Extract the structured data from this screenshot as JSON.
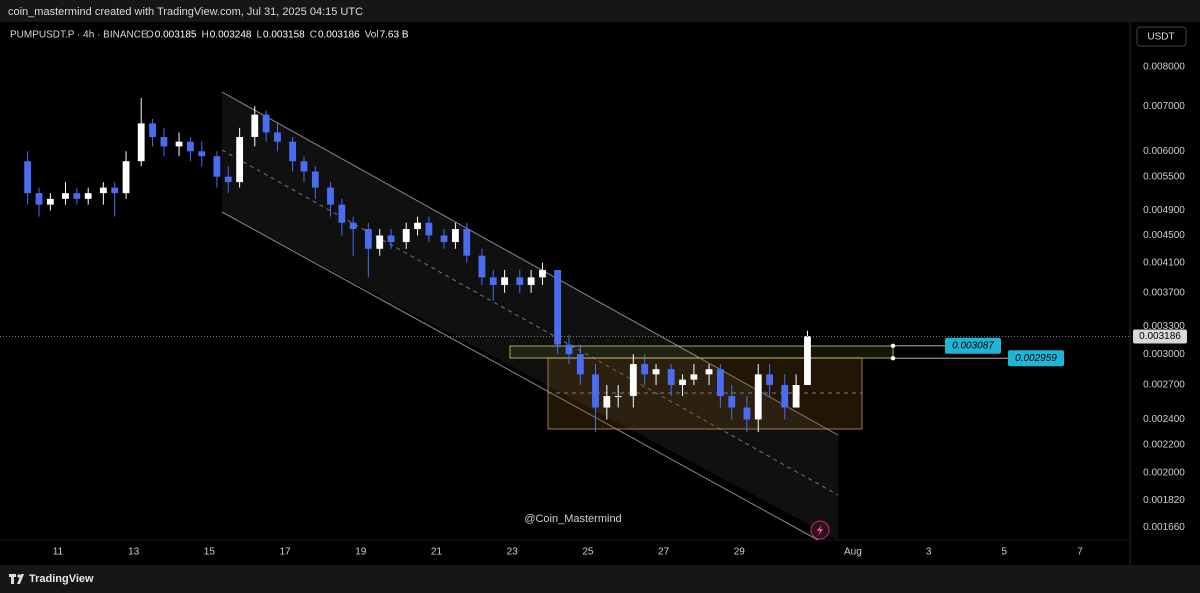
{
  "header": {
    "caption": "coin_mastermind created with TradingView.com, Jul 31, 2025 04:15 UTC"
  },
  "chart_data": {
    "type": "candlestick",
    "symbol": "PUMPUSDT.P · 4h · BINANCE",
    "legend": [
      {
        "key": "O",
        "value": 0.003185
      },
      {
        "key": "H",
        "value": 0.003248
      },
      {
        "key": "L",
        "value": 0.003158
      },
      {
        "key": "C",
        "value": 0.003186
      },
      {
        "key": "Vol",
        "value": 7630000000,
        "label": "7.63 B"
      }
    ],
    "currency": "USDT",
    "watermark": "@Coin_Mastermind",
    "up_color": "#ffffff",
    "down_color": "#4a6cf0",
    "log_scale": true,
    "grid": false,
    "x": [
      10.2,
      10.5,
      10.8,
      11.2,
      11.5,
      11.8,
      12.2,
      12.5,
      12.8,
      13.2,
      13.5,
      13.8,
      14.2,
      14.5,
      14.8,
      15.2,
      15.5,
      15.8,
      16.2,
      16.5,
      16.8,
      17.2,
      17.5,
      17.8,
      18.2,
      18.5,
      18.8,
      19.2,
      19.5,
      19.8,
      20.2,
      20.5,
      20.8,
      21.2,
      21.5,
      21.8,
      22.2,
      22.5,
      22.8,
      23.2,
      23.5,
      23.8,
      24.2,
      24.5,
      24.8,
      25.2,
      25.5,
      25.8,
      26.2,
      26.5,
      26.8,
      27.2,
      27.5,
      27.8,
      28.2,
      28.5,
      28.8,
      29.2,
      29.5,
      29.8,
      30.2,
      30.5,
      30.8
    ],
    "open": [
      0.0058,
      0.0052,
      0.005,
      0.0051,
      0.0052,
      0.0051,
      0.0052,
      0.0053,
      0.0052,
      0.0058,
      0.0066,
      0.0063,
      0.0061,
      0.0062,
      0.006,
      0.0059,
      0.0055,
      0.0054,
      0.0063,
      0.0068,
      0.0064,
      0.0062,
      0.0058,
      0.0056,
      0.0053,
      0.005,
      0.0047,
      0.0046,
      0.0043,
      0.0045,
      0.0044,
      0.0046,
      0.0047,
      0.0045,
      0.0044,
      0.0046,
      0.0042,
      0.0039,
      0.0038,
      0.0039,
      0.0038,
      0.0039,
      0.004,
      0.0031,
      0.003,
      0.0028,
      0.0025,
      0.0026,
      0.0026,
      0.0029,
      0.0028,
      0.00285,
      0.0027,
      0.00275,
      0.0028,
      0.00285,
      0.0026,
      0.0025,
      0.0024,
      0.0028,
      0.0027,
      0.0025,
      0.0027
    ],
    "high": [
      0.006,
      0.0053,
      0.0052,
      0.0054,
      0.0053,
      0.0053,
      0.0054,
      0.0054,
      0.006,
      0.0072,
      0.0067,
      0.0065,
      0.0064,
      0.0063,
      0.0062,
      0.006,
      0.0057,
      0.0065,
      0.007,
      0.0069,
      0.0066,
      0.0063,
      0.0059,
      0.0057,
      0.0054,
      0.0051,
      0.0048,
      0.0047,
      0.0046,
      0.0046,
      0.0047,
      0.0048,
      0.0048,
      0.0046,
      0.0047,
      0.0047,
      0.0043,
      0.004,
      0.004,
      0.004,
      0.004,
      0.0041,
      0.004,
      0.0032,
      0.0031,
      0.0029,
      0.0027,
      0.0027,
      0.003,
      0.003,
      0.0029,
      0.0029,
      0.0028,
      0.0029,
      0.0029,
      0.0029,
      0.0027,
      0.0026,
      0.0029,
      0.0029,
      0.0028,
      0.0028,
      0.00325
    ],
    "low": [
      0.005,
      0.0048,
      0.0049,
      0.005,
      0.005,
      0.005,
      0.005,
      0.0048,
      0.0051,
      0.0057,
      0.0061,
      0.0059,
      0.0059,
      0.0058,
      0.0057,
      0.0053,
      0.0052,
      0.0053,
      0.0061,
      0.0062,
      0.006,
      0.0056,
      0.0054,
      0.0051,
      0.0048,
      0.0045,
      0.0042,
      0.0039,
      0.0042,
      0.0043,
      0.0043,
      0.0045,
      0.0044,
      0.0043,
      0.0043,
      0.0041,
      0.0038,
      0.0036,
      0.0037,
      0.0037,
      0.0037,
      0.0038,
      0.003,
      0.0029,
      0.0027,
      0.0023,
      0.0024,
      0.0025,
      0.0025,
      0.0027,
      0.0027,
      0.0026,
      0.0026,
      0.0027,
      0.0027,
      0.0025,
      0.0024,
      0.0023,
      0.0023,
      0.0026,
      0.0024,
      0.0025,
      0.0027
    ],
    "close": [
      0.0052,
      0.005,
      0.0051,
      0.0052,
      0.0051,
      0.0052,
      0.0053,
      0.0052,
      0.0058,
      0.0066,
      0.0063,
      0.0061,
      0.0062,
      0.006,
      0.0059,
      0.0055,
      0.0054,
      0.0063,
      0.0068,
      0.0064,
      0.0062,
      0.0058,
      0.0056,
      0.0053,
      0.005,
      0.0047,
      0.0046,
      0.0043,
      0.0045,
      0.0044,
      0.0046,
      0.0047,
      0.0045,
      0.0044,
      0.0046,
      0.0042,
      0.0039,
      0.0038,
      0.0039,
      0.0038,
      0.0039,
      0.004,
      0.0031,
      0.003,
      0.0028,
      0.0025,
      0.0026,
      0.0026,
      0.0029,
      0.0028,
      0.00285,
      0.0027,
      0.00275,
      0.0028,
      0.00285,
      0.0026,
      0.0025,
      0.0024,
      0.0028,
      0.0027,
      0.0025,
      0.0027,
      0.00319
    ],
    "xlim": [
      9.47,
      39.32
    ],
    "xticks": [
      11,
      13,
      15,
      17,
      19,
      21,
      23,
      25,
      27,
      29,
      {
        "value": 32,
        "label": "Aug"
      },
      {
        "value": 34,
        "label": "3"
      },
      {
        "value": 36,
        "label": "5"
      },
      {
        "value": 38,
        "label": "7"
      }
    ],
    "ylim": [
      0.00159,
      0.00908
    ],
    "yticks": [
      {
        "value": 0.008,
        "label": "0.008000"
      },
      {
        "value": 0.007,
        "label": "0.007000"
      },
      {
        "value": 0.006,
        "label": "0.006000"
      },
      {
        "value": 0.0055,
        "label": "0.005500"
      },
      {
        "value": 0.0049,
        "label": "0.004900"
      },
      {
        "value": 0.0045,
        "label": "0.004500"
      },
      {
        "value": 0.0041,
        "label": "0.004100"
      },
      {
        "value": 0.0037,
        "label": "0.003700"
      },
      {
        "value": 0.0033,
        "label": "0.003300"
      },
      {
        "value": 0.003,
        "label": "0.003000"
      },
      {
        "value": 0.0027,
        "label": "0.002700"
      },
      {
        "value": 0.0024,
        "label": "0.002400"
      },
      {
        "value": 0.0022,
        "label": "0.002200"
      },
      {
        "value": 0.002,
        "label": "0.002000"
      },
      {
        "value": 0.00182,
        "label": "0.001820"
      },
      {
        "value": 0.00166,
        "label": "0.001660"
      }
    ],
    "last_price": 0.003186,
    "price_labels": [
      0.003087,
      0.002959
    ]
  },
  "footer": {
    "brand": "TradingView"
  }
}
